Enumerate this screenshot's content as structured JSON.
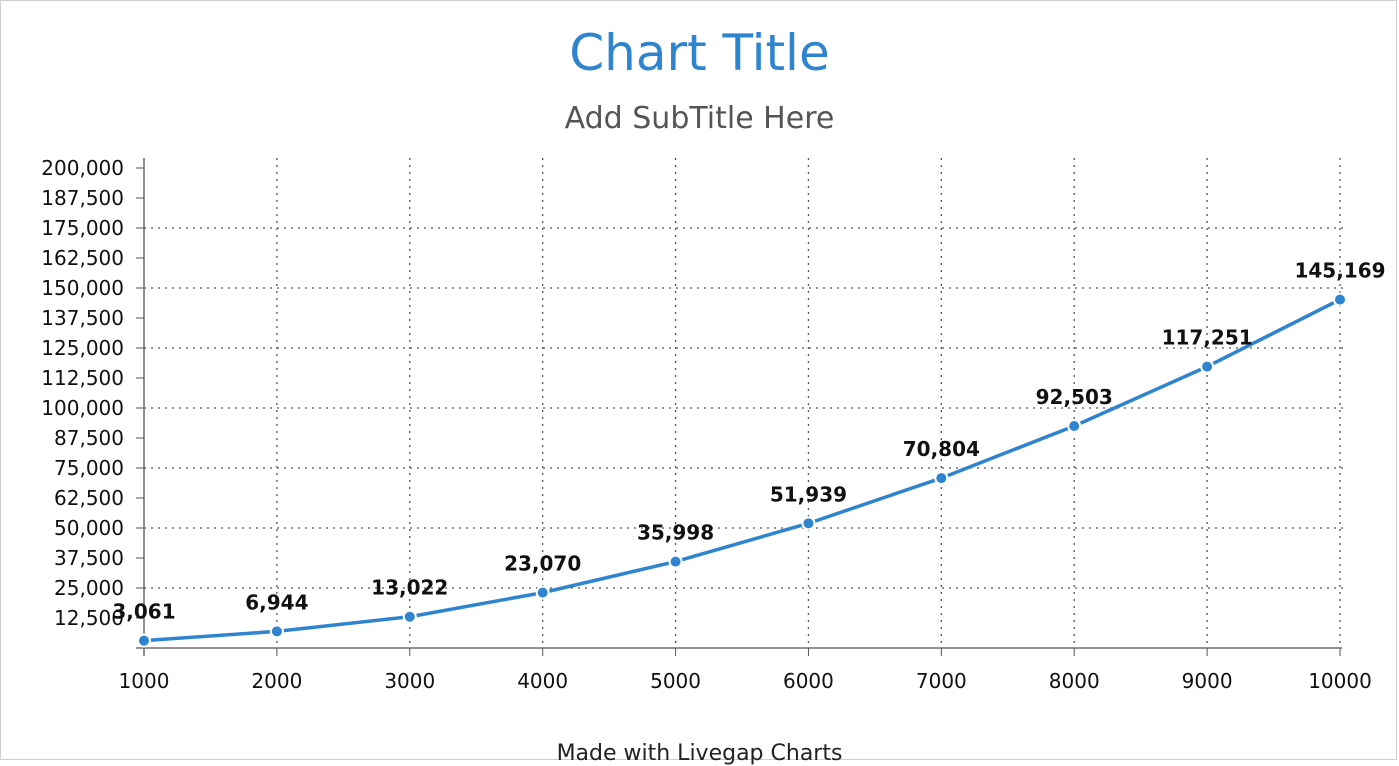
{
  "chart_data": {
    "type": "line",
    "title": "Chart Title",
    "subtitle": "Add SubTitle Here",
    "footer": "Made with Livegap Charts",
    "x": [
      "1000",
      "2000",
      "3000",
      "4000",
      "5000",
      "6000",
      "7000",
      "8000",
      "9000",
      "10000"
    ],
    "series": [
      {
        "values": [
          3061,
          6944,
          13022,
          23070,
          35998,
          51939,
          70804,
          92503,
          117251,
          145169
        ],
        "labels": [
          "3,061",
          "6,944",
          "13,022",
          "23,070",
          "35,998",
          "51,939",
          "70,804",
          "92,503",
          "117,251",
          "145,169"
        ],
        "color": "#2f84d0"
      }
    ],
    "ylim": [
      0,
      200000
    ],
    "y_ticks": [
      "12,500",
      "25,000",
      "37,500",
      "50,000",
      "62,500",
      "75,000",
      "87,500",
      "100,000",
      "112,500",
      "125,000",
      "137,500",
      "150,000",
      "162,500",
      "175,000",
      "187,500",
      "200,000"
    ],
    "y_tick_values": [
      12500,
      25000,
      37500,
      50000,
      62500,
      75000,
      87500,
      100000,
      112500,
      125000,
      137500,
      150000,
      162500,
      175000,
      187500,
      200000
    ],
    "grid": "dotted",
    "legend": "none"
  },
  "colors": {
    "title": "#2f84d0",
    "line": "#2f84d0",
    "grid": "#555555"
  }
}
